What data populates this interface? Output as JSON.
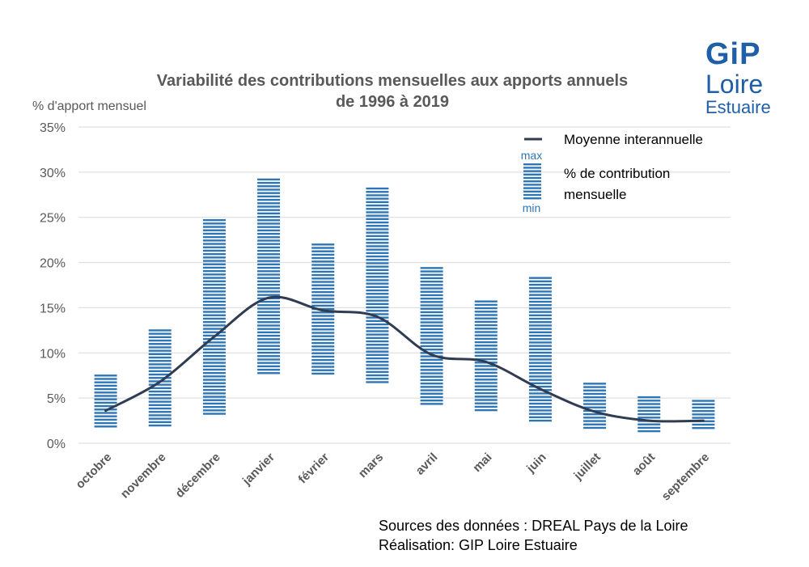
{
  "colors": {
    "bar": "#2e75b6",
    "line": "#2f3c51",
    "grid": "#d9d9d9",
    "text": "#595959",
    "logo_blue": "#1f5fa8",
    "logo_orange": "#f29100"
  },
  "logo": {
    "top": "GiP",
    "middle": "Loire",
    "bottom": "Estuaire"
  },
  "sources": {
    "line1": "Sources des données : DREAL Pays de la Loire",
    "line2": "Réalisation: GIP Loire Estuaire"
  },
  "chart_data": {
    "type": "bar",
    "title_lines": [
      "Variabilité des contributions mensuelles aux apports annuels",
      "de 1996 à 2019"
    ],
    "ylabel": "% d'apport mensuel",
    "xlabel": "",
    "ylim": [
      0,
      35
    ],
    "y_ticks": [
      "0%",
      "5%",
      "10%",
      "15%",
      "20%",
      "25%",
      "30%",
      "35%"
    ],
    "grid": true,
    "legend_position": "top-right",
    "categories": [
      "octobre",
      "novembre",
      "décembre",
      "janvier",
      "février",
      "mars",
      "avril",
      "mai",
      "juin",
      "juillet",
      "août",
      "septembre"
    ],
    "series": [
      {
        "name": "Moyenne interannuelle",
        "type": "line",
        "values": [
          3.6,
          6.8,
          11.8,
          16.1,
          14.7,
          14.0,
          9.8,
          9.0,
          6.0,
          3.5,
          2.5,
          2.5
        ]
      },
      {
        "name": "% de contribution mensuelle",
        "type": "range",
        "min": [
          1.8,
          1.8,
          3.0,
          7.8,
          7.8,
          6.7,
          4.4,
          3.4,
          2.5,
          1.8,
          1.4,
          1.5
        ],
        "max": [
          7.6,
          12.6,
          24.8,
          29.3,
          22.1,
          28.3,
          19.5,
          15.8,
          18.4,
          6.7,
          5.2,
          4.8
        ]
      }
    ],
    "legend": {
      "line_label": "Moyenne interannuelle",
      "range_label_line1": "% de contribution",
      "range_label_line2": "mensuelle",
      "max_label": "max",
      "min_label": "min"
    }
  }
}
